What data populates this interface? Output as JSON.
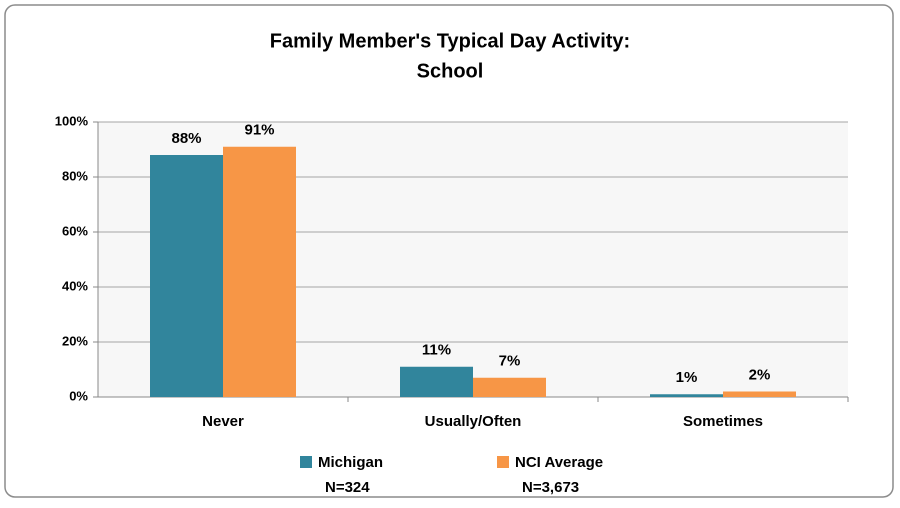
{
  "chart_data": {
    "type": "bar",
    "title": "Family Member's Typical Day Activity:",
    "subtitle": "School",
    "categories": [
      "Never",
      "Usually/Often",
      "Sometimes"
    ],
    "series": [
      {
        "name": "Michigan",
        "note": "N=324",
        "color": "#31859c",
        "values": [
          88,
          11,
          1
        ],
        "value_labels": [
          "88%",
          "11%",
          "1%"
        ]
      },
      {
        "name": "NCI Average",
        "note": "N=3,673",
        "color": "#f79646",
        "values": [
          91,
          7,
          2
        ],
        "value_labels": [
          "91%",
          "7%",
          "2%"
        ]
      }
    ],
    "ylim": [
      0,
      100
    ],
    "yticks": [
      {
        "value": 0,
        "label": "0%"
      },
      {
        "value": 20,
        "label": "20%"
      },
      {
        "value": 40,
        "label": "40%"
      },
      {
        "value": 60,
        "label": "60%"
      },
      {
        "value": 80,
        "label": "80%"
      },
      {
        "value": 100,
        "label": "100%"
      }
    ],
    "grid": true,
    "legend": "bottom"
  }
}
